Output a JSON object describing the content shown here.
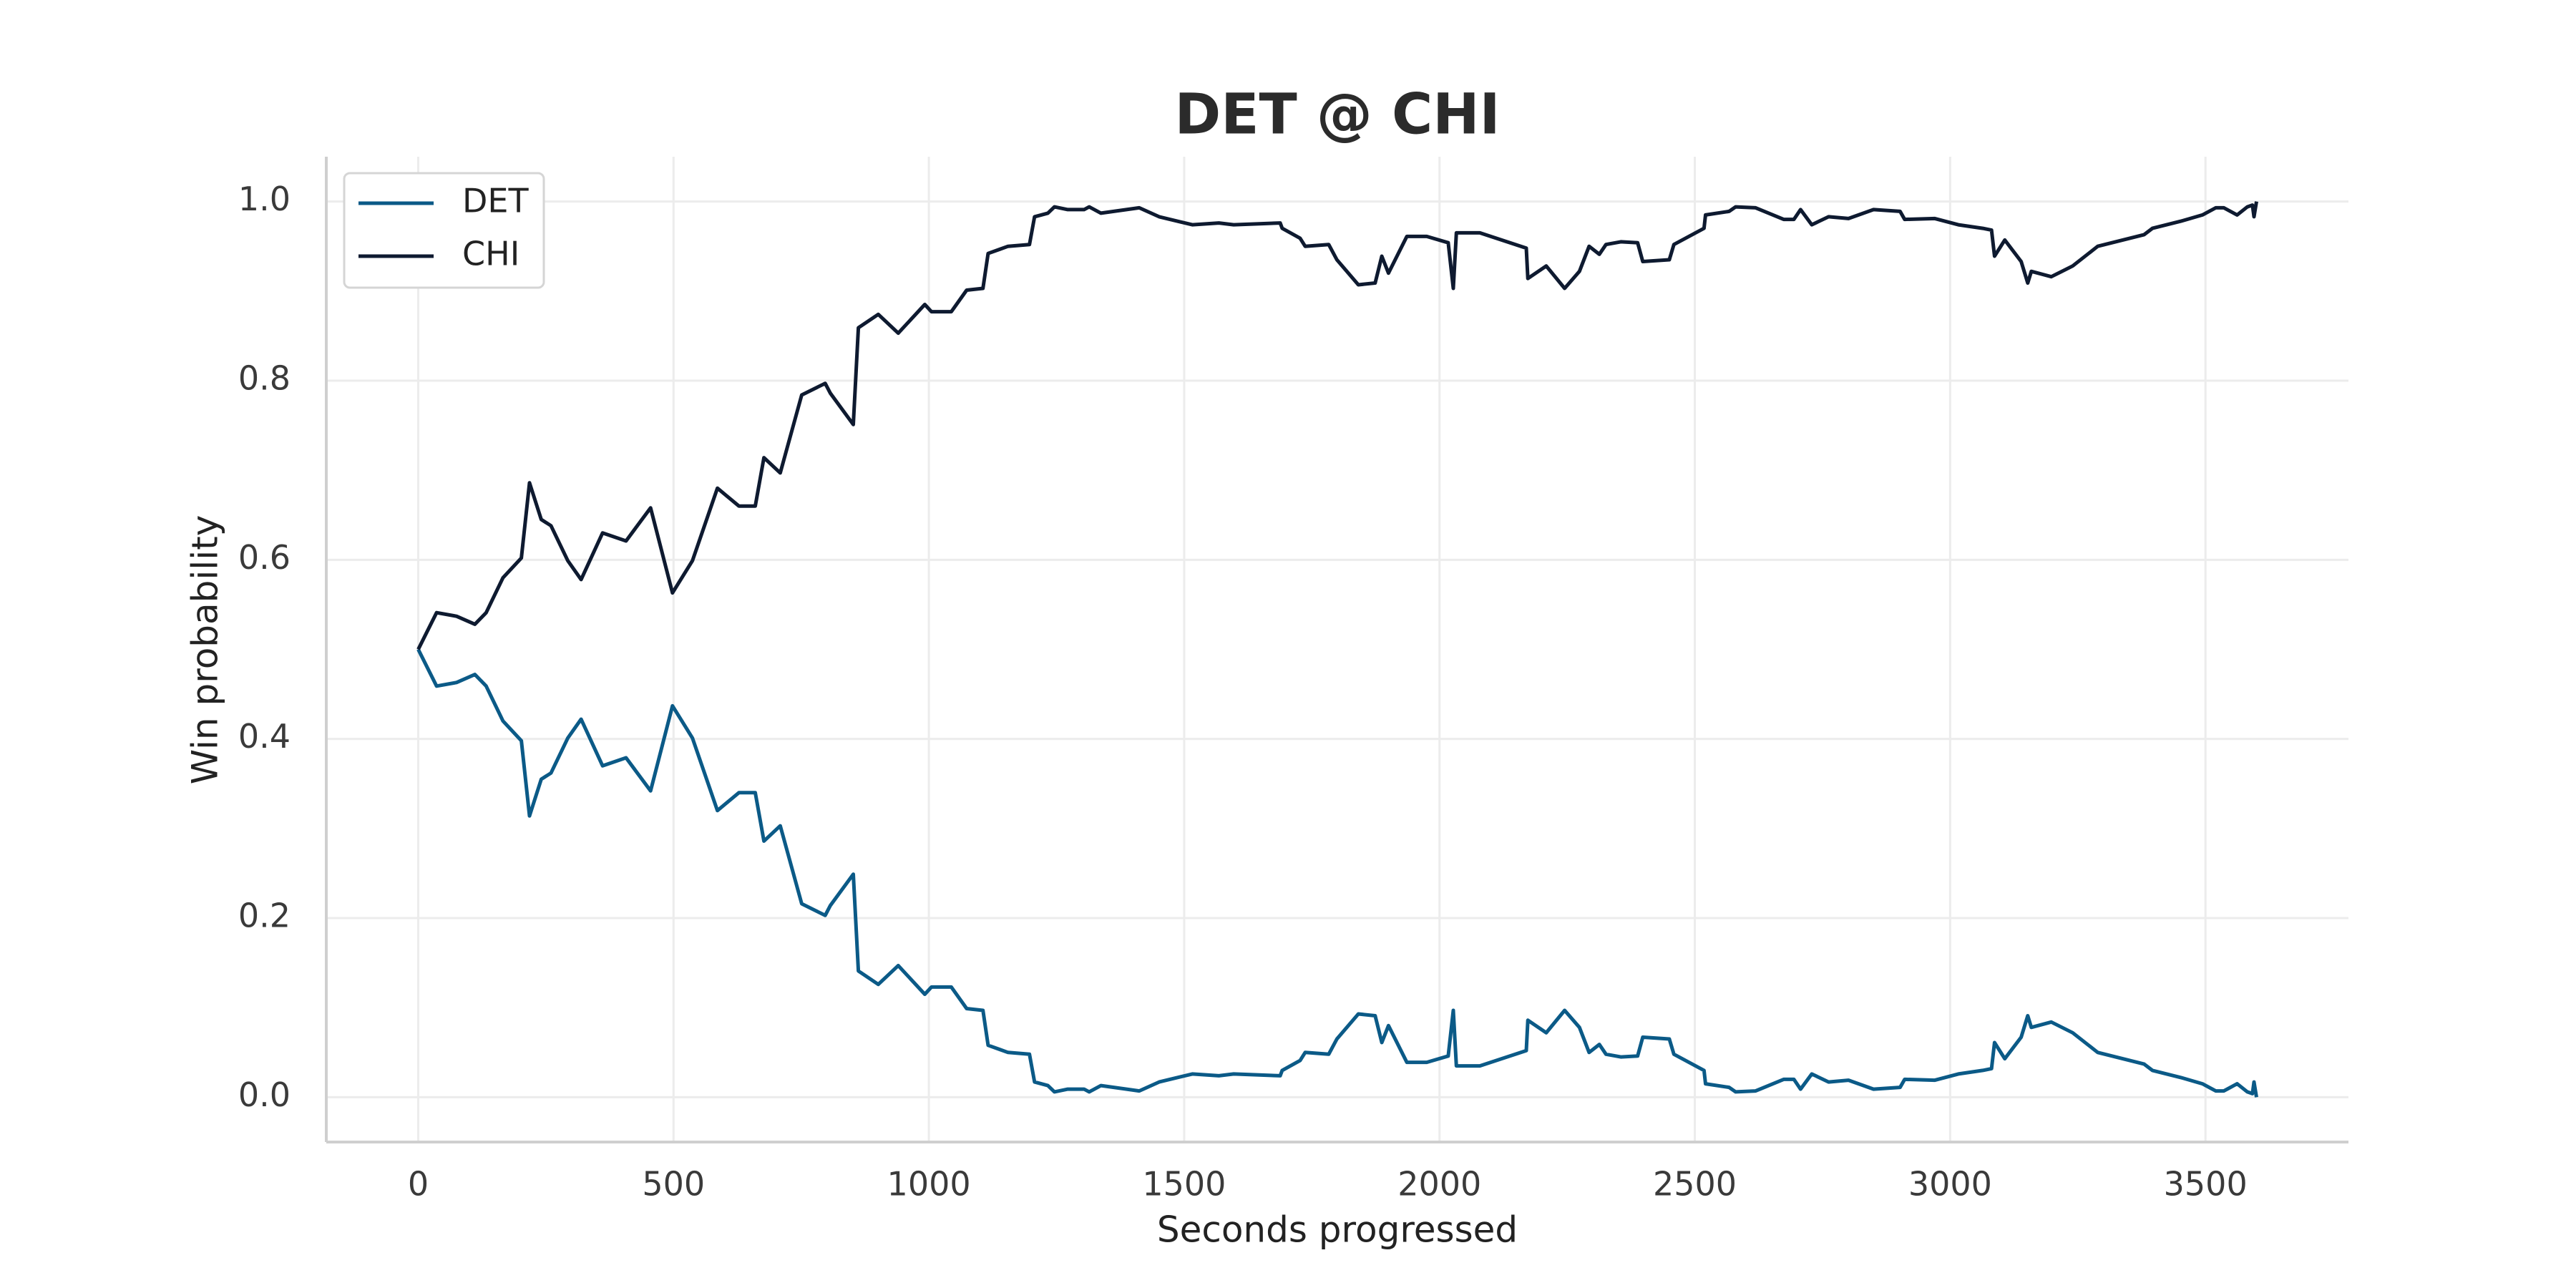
{
  "chart_data": {
    "type": "line",
    "title": "DET @ CHI",
    "x_label": "Seconds progressed",
    "y_label": "Win probability",
    "x": [
      0,
      36,
      75,
      111,
      133,
      166,
      202,
      218,
      241,
      260,
      293,
      319,
      361,
      407,
      455,
      498,
      537,
      586,
      628,
      660,
      677,
      709,
      751,
      797,
      807,
      852,
      862,
      901,
      940,
      992,
      1005,
      1044,
      1074,
      1106,
      1116,
      1155,
      1197,
      1207,
      1233,
      1246,
      1272,
      1304,
      1314,
      1337,
      1412,
      1451,
      1516,
      1568,
      1597,
      1688,
      1692,
      1727,
      1737,
      1783,
      1799,
      1841,
      1874,
      1887,
      1900,
      1936,
      1975,
      2017,
      2027,
      2033,
      2079,
      2170,
      2173,
      2209,
      2245,
      2274,
      2293,
      2313,
      2326,
      2355,
      2388,
      2398,
      2450,
      2459,
      2518,
      2521,
      2567,
      2580,
      2619,
      2674,
      2694,
      2707,
      2729,
      2762,
      2801,
      2850,
      2902,
      2911,
      2970,
      3016,
      3064,
      3081,
      3087,
      3107,
      3139,
      3152,
      3159,
      3198,
      3240,
      3289,
      3380,
      3396,
      3452,
      3494,
      3520,
      3536,
      3562,
      3582,
      3592,
      3595,
      3600
    ],
    "series": [
      {
        "name": "DET",
        "color": "#0b5a87",
        "values": [
          0.5,
          0.459,
          0.463,
          0.472,
          0.459,
          0.42,
          0.398,
          0.314,
          0.355,
          0.362,
          0.401,
          0.422,
          0.37,
          0.379,
          0.342,
          0.437,
          0.401,
          0.32,
          0.34,
          0.34,
          0.286,
          0.303,
          0.216,
          0.203,
          0.214,
          0.249,
          0.141,
          0.126,
          0.147,
          0.115,
          0.123,
          0.123,
          0.099,
          0.097,
          0.058,
          0.05,
          0.048,
          0.017,
          0.013,
          0.006,
          0.009,
          0.009,
          0.006,
          0.013,
          0.007,
          0.017,
          0.026,
          0.024,
          0.026,
          0.024,
          0.03,
          0.041,
          0.05,
          0.048,
          0.065,
          0.093,
          0.091,
          0.061,
          0.08,
          0.039,
          0.039,
          0.046,
          0.097,
          0.035,
          0.035,
          0.052,
          0.086,
          0.072,
          0.097,
          0.078,
          0.05,
          0.059,
          0.048,
          0.045,
          0.046,
          0.067,
          0.065,
          0.048,
          0.03,
          0.015,
          0.011,
          0.006,
          0.007,
          0.02,
          0.02,
          0.009,
          0.026,
          0.017,
          0.019,
          0.009,
          0.011,
          0.02,
          0.019,
          0.026,
          0.03,
          0.032,
          0.061,
          0.043,
          0.067,
          0.091,
          0.078,
          0.084,
          0.072,
          0.05,
          0.037,
          0.03,
          0.022,
          0.015,
          0.007,
          0.007,
          0.015,
          0.006,
          0.004,
          0.017,
          0
        ]
      },
      {
        "name": "CHI",
        "color": "#0e1a30",
        "values": [
          0.5,
          0.541,
          0.537,
          0.528,
          0.541,
          0.58,
          0.602,
          0.686,
          0.645,
          0.638,
          0.599,
          0.578,
          0.63,
          0.621,
          0.658,
          0.563,
          0.599,
          0.68,
          0.66,
          0.66,
          0.714,
          0.697,
          0.784,
          0.797,
          0.786,
          0.751,
          0.859,
          0.874,
          0.853,
          0.885,
          0.877,
          0.877,
          0.901,
          0.903,
          0.942,
          0.95,
          0.952,
          0.983,
          0.987,
          0.994,
          0.991,
          0.991,
          0.994,
          0.987,
          0.993,
          0.983,
          0.974,
          0.976,
          0.974,
          0.976,
          0.97,
          0.959,
          0.95,
          0.952,
          0.935,
          0.907,
          0.909,
          0.939,
          0.92,
          0.961,
          0.961,
          0.954,
          0.903,
          0.965,
          0.965,
          0.948,
          0.914,
          0.928,
          0.903,
          0.922,
          0.95,
          0.941,
          0.952,
          0.955,
          0.954,
          0.933,
          0.935,
          0.952,
          0.97,
          0.985,
          0.989,
          0.994,
          0.993,
          0.98,
          0.98,
          0.991,
          0.974,
          0.983,
          0.981,
          0.991,
          0.989,
          0.98,
          0.981,
          0.974,
          0.97,
          0.968,
          0.939,
          0.957,
          0.933,
          0.909,
          0.922,
          0.916,
          0.928,
          0.95,
          0.963,
          0.97,
          0.978,
          0.985,
          0.993,
          0.993,
          0.985,
          0.994,
          0.996,
          0.983,
          1
        ]
      }
    ],
    "xlim": [
      -180,
      3780
    ],
    "ylim": [
      -0.05,
      1.05
    ],
    "xticks": [
      0,
      500,
      1000,
      1500,
      2000,
      2500,
      3000,
      3500
    ],
    "yticks": [
      {
        "value": 0,
        "label": "0.0"
      },
      0.2,
      0.4,
      0.6,
      0.8,
      {
        "value": 1,
        "label": "1.0"
      }
    ],
    "grid": true,
    "legend": "upper left"
  }
}
